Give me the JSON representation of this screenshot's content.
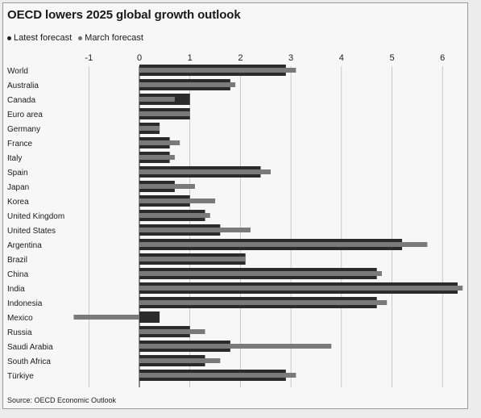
{
  "title": "OECD lowers 2025 global growth outlook",
  "legend": [
    {
      "label": "Latest forecast",
      "color": "#2b2b2b"
    },
    {
      "label": "March forecast",
      "color": "#7a7a7a"
    }
  ],
  "source": "Source: OECD Economic Outlook",
  "chart_data": {
    "type": "bar",
    "orientation": "horizontal",
    "title": "OECD lowers 2025 global growth outlook",
    "xlabel": "",
    "ylabel": "",
    "xlim": [
      -1.3,
      6.45
    ],
    "xticks": [
      -1,
      0,
      1,
      2,
      3,
      4,
      5,
      6
    ],
    "grid": true,
    "legend_position": "top-left",
    "categories": [
      "World",
      "Australia",
      "Canada",
      "Euro area",
      "Germany",
      "France",
      "Italy",
      "Spain",
      "Japan",
      "Korea",
      "United Kingdom",
      "United States",
      "Argentina",
      "Brazil",
      "China",
      "India",
      "Indonesia",
      "Mexico",
      "Russia",
      "Saudi Arabia",
      "South Africa",
      "Türkiye"
    ],
    "series": [
      {
        "name": "Latest forecast",
        "color": "#2b2b2b",
        "values": [
          2.9,
          1.8,
          1.0,
          1.0,
          0.4,
          0.6,
          0.6,
          2.4,
          0.7,
          1.0,
          1.3,
          1.6,
          5.2,
          2.1,
          4.7,
          6.3,
          4.7,
          0.4,
          1.0,
          1.8,
          1.3,
          2.9
        ]
      },
      {
        "name": "March forecast",
        "color": "#7a7a7a",
        "values": [
          3.1,
          1.9,
          0.7,
          1.0,
          0.4,
          0.8,
          0.7,
          2.6,
          1.1,
          1.5,
          1.4,
          2.2,
          5.7,
          2.1,
          4.8,
          6.4,
          4.9,
          -1.3,
          1.3,
          3.8,
          1.6,
          3.1
        ]
      }
    ]
  }
}
